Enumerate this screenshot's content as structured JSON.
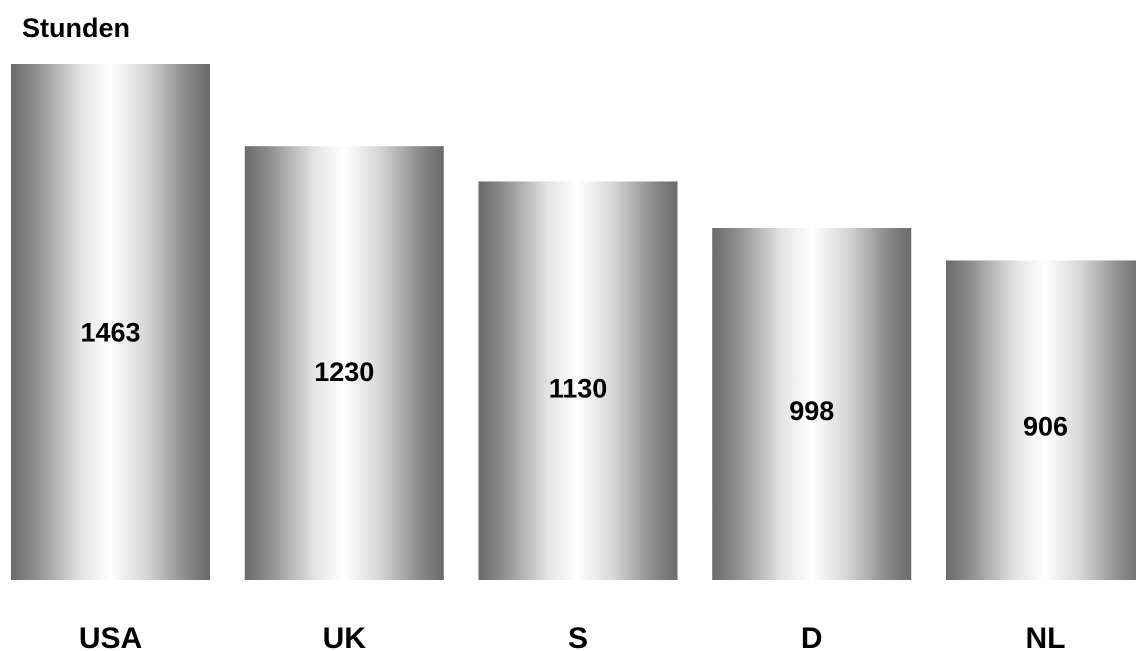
{
  "chart_data": {
    "type": "bar",
    "ylabel": "Stunden",
    "categories": [
      "USA",
      "UK",
      "S",
      "D",
      "NL"
    ],
    "values": [
      1463,
      1230,
      1130,
      998,
      906
    ],
    "ylim": [
      0,
      1463
    ],
    "grid": false,
    "data_labels": true,
    "bar_style": "cylindrical grey gradient",
    "colors": {
      "bar_dark": "#6a6a6a",
      "bar_light": "#ffffff",
      "text": "#000000",
      "background": "#ffffff"
    }
  }
}
